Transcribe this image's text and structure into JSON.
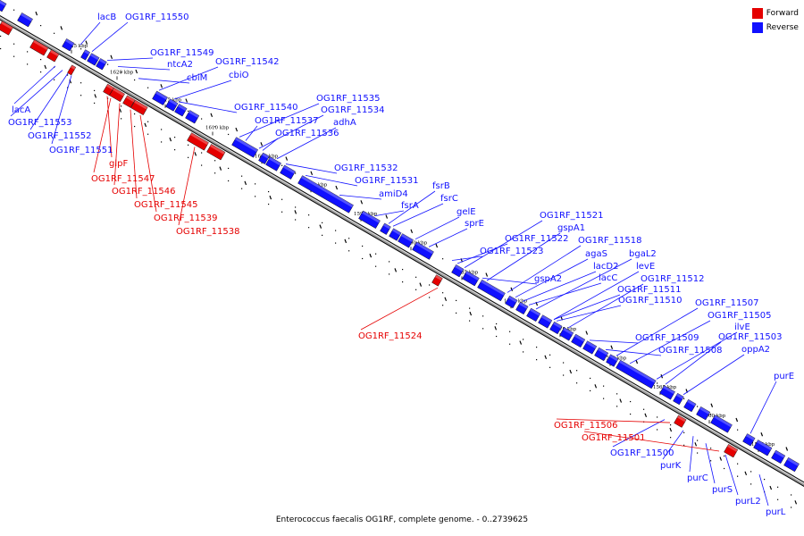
{
  "legend": {
    "forward_label": "Forward",
    "reverse_label": "Reverse",
    "forward_color": "#e50000",
    "reverse_color": "#1010ff"
  },
  "caption": "Enterococcus faecalis OG1RF, complete genome. - 0..2739625",
  "genome_range_kbp": [
    1553,
    1627
  ],
  "ticks": [
    "1625 kbp",
    "1620 kbp",
    "1615 kbp",
    "1610 kbp",
    "1605 kbp",
    "1600 kbp",
    "1595 kbp",
    "1590 kbp",
    "1585 kbp",
    "1580 kbp",
    "1575 kbp",
    "1570 kbp",
    "1565 kbp",
    "1560 kbp",
    "1555 kbp"
  ],
  "reverse_labels": [
    "lacB",
    "OG1RF_11550",
    "OG1RF_11549",
    "ntcA2",
    "cbiM",
    "OG1RF_11542",
    "cbiO",
    "lacA",
    "OG1RF_11553",
    "OG1RF_11552",
    "OG1RF_11551",
    "OG1RF_11540",
    "OG1RF_11535",
    "OG1RF_11534",
    "OG1RF_11537",
    "adhA",
    "OG1RF_11536",
    "OG1RF_11532",
    "OG1RF_11531",
    "amiD4",
    "fsrB",
    "fsrC",
    "fsrA",
    "gelE",
    "sprE",
    "OG1RF_11521",
    "gspA1",
    "OG1RF_11522",
    "OG1RF_11518",
    "OG1RF_11523",
    "agaS",
    "bgaL2",
    "lacD2",
    "levE",
    "gspA2",
    "lacC",
    "OG1RF_11512",
    "OG1RF_11511",
    "OG1RF_11510",
    "OG1RF_11507",
    "OG1RF_11505",
    "ilvE",
    "OG1RF_11509",
    "OG1RF_11503",
    "OG1RF_11508",
    "oppA2",
    "purE",
    "OG1RF_11500",
    "purK",
    "purC",
    "purS",
    "purL2",
    "purL"
  ],
  "forward_labels": [
    "glpF",
    "OG1RF_11547",
    "OG1RF_11546",
    "OG1RF_11545",
    "OG1RF_11539",
    "OG1RF_11538",
    "OG1RF_11524",
    "OG1RF_11506",
    "OG1RF_11501"
  ]
}
